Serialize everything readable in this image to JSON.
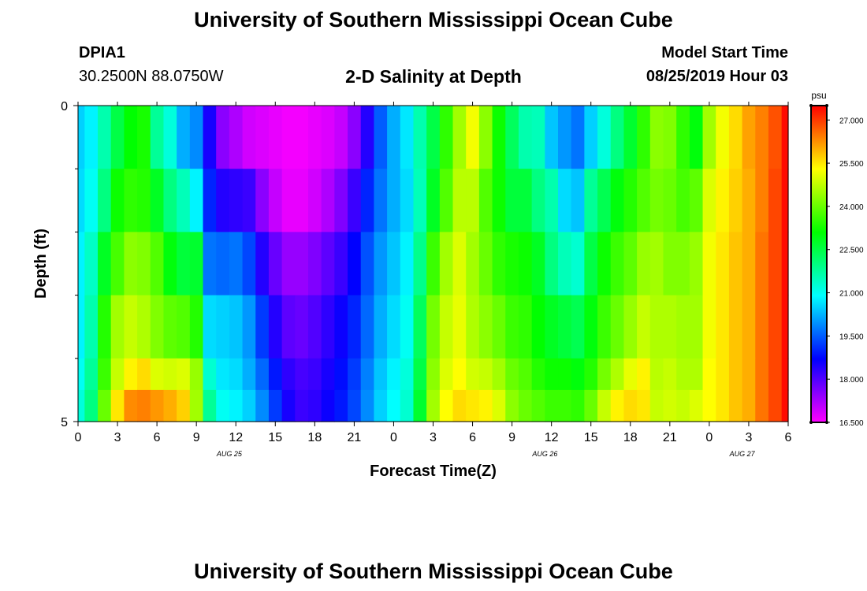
{
  "header": {
    "title": "University of Southern Mississippi Ocean Cube",
    "station_id": "DPIA1",
    "coordinates": "30.2500N 88.0750W",
    "plot_title": "2-D Salinity at Depth",
    "model_start_label": "Model Start Time",
    "model_start_value": "08/25/2019 Hour 03"
  },
  "footer": {
    "title": "University of Southern Mississippi Ocean Cube"
  },
  "chart_data": {
    "type": "heatmap",
    "title": "2-D Salinity at Depth",
    "xlabel": "Forecast Time(Z)",
    "ylabel": "Depth (ft)",
    "x_hours": [
      0,
      1,
      2,
      3,
      4,
      5,
      6,
      7,
      8,
      9,
      10,
      11,
      12,
      13,
      14,
      15,
      16,
      17,
      18,
      19,
      20,
      21,
      22,
      23,
      24,
      25,
      26,
      27,
      28,
      29,
      30,
      31,
      32,
      33,
      34,
      35,
      36,
      37,
      38,
      39,
      40,
      41,
      42,
      43,
      44,
      45,
      46,
      47,
      48,
      49,
      50,
      51,
      52,
      53,
      54
    ],
    "xlim": [
      0,
      54
    ],
    "x_tick_labels": [
      "0",
      "3",
      "6",
      "9",
      "12",
      "15",
      "18",
      "21",
      "0",
      "3",
      "6",
      "9",
      "12",
      "15",
      "18",
      "21",
      "0",
      "3",
      "6"
    ],
    "date_labels": [
      {
        "text": "AUG 25",
        "hour": 11.5
      },
      {
        "text": "AUG 26",
        "hour": 35.5
      },
      {
        "text": "AUG 27",
        "hour": 50.5
      }
    ],
    "depth_bands": [
      "0-1",
      "1-2",
      "2-3",
      "3-4",
      "4-4.5",
      "4.5-5"
    ],
    "ylim": [
      0,
      5
    ],
    "y_tick_labels": [
      "0",
      "5"
    ],
    "y_minor_ticks": [
      1,
      2,
      3,
      4
    ],
    "colorbar": {
      "unit": "psu",
      "min": 16.5,
      "max": 27.5,
      "tick_labels": [
        "27.000",
        "25.500",
        "24.000",
        "22.500",
        "21.000",
        "19.500",
        "18.000",
        "16.500"
      ],
      "tick_values": [
        27.0,
        25.5,
        24.0,
        22.5,
        21.0,
        19.5,
        18.0,
        16.5
      ]
    },
    "salinity_psu": [
      [
        20.5,
        20.8,
        21.6,
        22.5,
        23.1,
        23.3,
        21.8,
        21.2,
        20.2,
        19.9,
        18.5,
        17.5,
        17.2,
        16.9,
        16.8,
        16.7,
        16.6,
        16.6,
        16.7,
        16.8,
        17.0,
        17.5,
        18.4,
        19.5,
        20.2,
        20.7,
        21.6,
        22.5,
        23.5,
        24.5,
        25.2,
        24.3,
        23.2,
        22.3,
        21.6,
        21.5,
        20.4,
        20.0,
        19.7,
        20.5,
        21.2,
        22.0,
        22.7,
        23.5,
        24.3,
        24.2,
        23.5,
        23.0,
        24.5,
        25.2,
        25.6,
        26.1,
        26.4,
        26.8,
        27.4
      ],
      [
        20.6,
        21.0,
        22.0,
        23.2,
        23.5,
        23.4,
        22.8,
        22.0,
        21.5,
        20.8,
        19.0,
        18.4,
        18.3,
        18.2,
        17.5,
        17.0,
        16.7,
        16.7,
        16.9,
        17.2,
        17.6,
        18.2,
        19.0,
        19.7,
        20.2,
        20.6,
        21.5,
        22.8,
        23.8,
        24.7,
        24.7,
        23.8,
        23.2,
        22.6,
        22.6,
        22.0,
        21.6,
        20.6,
        20.4,
        21.8,
        22.4,
        23.0,
        23.4,
        23.8,
        24.1,
        24.0,
        23.7,
        23.9,
        25.0,
        25.4,
        25.7,
        26.0,
        26.4,
        26.9,
        27.4
      ],
      [
        20.8,
        21.4,
        22.8,
        23.7,
        24.3,
        24.2,
        23.8,
        23.0,
        22.6,
        22.7,
        19.7,
        19.6,
        19.7,
        19.3,
        18.4,
        17.8,
        17.4,
        17.4,
        17.6,
        17.9,
        18.2,
        18.7,
        19.4,
        20.0,
        20.4,
        20.8,
        21.9,
        23.6,
        24.5,
        25.0,
        24.5,
        24.0,
        23.5,
        23.3,
        23.2,
        22.8,
        22.0,
        21.5,
        21.3,
        22.5,
        23.2,
        23.6,
        23.9,
        24.4,
        24.5,
        24.2,
        24.2,
        24.4,
        25.2,
        25.5,
        25.8,
        26.0,
        26.5,
        26.9,
        27.4
      ],
      [
        20.8,
        21.6,
        23.4,
        24.5,
        24.8,
        24.6,
        24.2,
        23.9,
        23.8,
        23.4,
        20.6,
        20.5,
        20.4,
        20.0,
        19.2,
        18.4,
        17.9,
        17.8,
        18.0,
        18.3,
        18.6,
        19.0,
        19.6,
        20.2,
        20.6,
        21.0,
        22.3,
        24.1,
        24.8,
        25.1,
        24.6,
        24.3,
        24.0,
        23.6,
        23.5,
        23.1,
        22.8,
        22.6,
        22.4,
        23.0,
        23.6,
        24.0,
        24.4,
        24.8,
        24.6,
        24.6,
        24.5,
        24.5,
        25.2,
        25.5,
        25.8,
        26.0,
        26.5,
        26.9,
        27.4
      ],
      [
        21.0,
        21.8,
        23.6,
        24.8,
        25.4,
        25.6,
        25.0,
        24.9,
        25.0,
        24.4,
        21.3,
        20.7,
        20.6,
        20.2,
        19.6,
        18.9,
        18.3,
        18.1,
        18.2,
        18.5,
        18.8,
        19.2,
        19.8,
        20.4,
        20.8,
        21.2,
        22.5,
        24.3,
        25.0,
        25.3,
        24.9,
        24.8,
        24.5,
        24.0,
        23.8,
        23.4,
        23.2,
        23.2,
        23.0,
        23.4,
        24.1,
        24.6,
        25.1,
        25.4,
        24.7,
        24.8,
        24.6,
        24.6,
        25.3,
        25.5,
        25.8,
        26.0,
        26.5,
        26.9,
        27.4
      ],
      [
        21.2,
        22.0,
        24.0,
        25.5,
        26.3,
        26.4,
        26.2,
        26.0,
        25.7,
        24.5,
        21.8,
        21.0,
        20.8,
        20.5,
        19.9,
        19.2,
        18.5,
        18.2,
        18.3,
        18.6,
        18.9,
        19.3,
        19.9,
        20.5,
        20.9,
        21.3,
        22.7,
        24.5,
        25.3,
        25.6,
        25.5,
        25.4,
        25.0,
        24.3,
        24.0,
        23.8,
        23.6,
        23.6,
        23.5,
        24.0,
        24.8,
        25.4,
        25.6,
        25.5,
        24.8,
        24.9,
        24.8,
        25.0,
        25.3,
        25.5,
        25.8,
        26.0,
        26.5,
        26.9,
        27.4
      ]
    ]
  }
}
